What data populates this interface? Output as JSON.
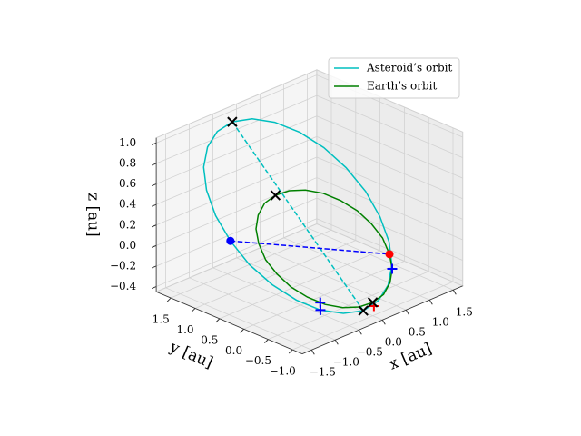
{
  "chart_data": {
    "type": "line3d",
    "xlabel": "x [au]",
    "ylabel": "y [au]",
    "zlabel": "z [au]",
    "xlim": [
      -1.7,
      1.7
    ],
    "ylim": [
      -1.2,
      1.8
    ],
    "zlim": [
      -0.45,
      1.05
    ],
    "xticks": [
      {
        "value": -1.5,
        "label": "−1.5"
      },
      {
        "value": -1.0,
        "label": "−1.0"
      },
      {
        "value": -0.5,
        "label": "−0.5"
      },
      {
        "value": 0,
        "label": "0.0"
      },
      {
        "value": 0.5,
        "label": "0.5"
      },
      {
        "value": 1.0,
        "label": "1.0"
      },
      {
        "value": 1.5,
        "label": "1.5"
      }
    ],
    "yticks": [
      {
        "value": -1.0,
        "label": "−1.0"
      },
      {
        "value": -0.5,
        "label": "−0.5"
      },
      {
        "value": 0,
        "label": "0.0"
      },
      {
        "value": 0.5,
        "label": "0.5"
      },
      {
        "value": 1.0,
        "label": "1.0"
      },
      {
        "value": 1.5,
        "label": "1.5"
      }
    ],
    "zticks": [
      {
        "value": -0.4,
        "label": "−0.4"
      },
      {
        "value": -0.2,
        "label": "−0.2"
      },
      {
        "value": 0,
        "label": "0.0"
      },
      {
        "value": 0.2,
        "label": "0.2"
      },
      {
        "value": 0.4,
        "label": "0.4"
      },
      {
        "value": 0.6,
        "label": "0.6"
      },
      {
        "value": 0.8,
        "label": "0.8"
      },
      {
        "value": 1.0,
        "label": "1.0"
      }
    ],
    "grid": true,
    "legend": "upper right",
    "series": [
      {
        "name": "Asteroid’s orbit",
        "color": "#00bfbf",
        "closed": true,
        "x": [
          -0.11,
          -0.46,
          -0.82,
          -1.16,
          -1.45,
          -1.68,
          -1.82,
          -1.88,
          -1.83,
          -1.7,
          -1.49,
          -1.2,
          -0.87,
          -0.51,
          -0.15,
          0.19,
          0.48,
          0.7,
          0.85,
          0.9,
          0.86,
          0.73,
          0.51,
          0.23
        ],
        "y": [
          1.78,
          1.75,
          1.6,
          1.35,
          1.01,
          0.6,
          0.16,
          -0.29,
          -0.71,
          -1.08,
          -1.37,
          -1.56,
          -1.65,
          -1.61,
          -1.46,
          -1.21,
          -0.87,
          -0.47,
          -0.03,
          0.42,
          0.84,
          1.21,
          1.51,
          1.7
        ],
        "z": [
          0.9,
          0.88,
          0.83,
          0.75,
          0.65,
          0.53,
          0.4,
          0.27,
          0.15,
          0.05,
          -0.03,
          -0.08,
          -0.1,
          -0.08,
          -0.03,
          0.05,
          0.15,
          0.27,
          0.4,
          0.53,
          0.65,
          0.75,
          0.83,
          0.88
        ]
      },
      {
        "name": "Earth’s orbit",
        "color": "#008000",
        "closed": true,
        "x": [
          1,
          0.97,
          0.87,
          0.71,
          0.5,
          0.26,
          0,
          -0.26,
          -0.5,
          -0.71,
          -0.87,
          -0.97,
          -1,
          -0.97,
          -0.87,
          -0.71,
          -0.5,
          -0.26,
          0,
          0.26,
          0.5,
          0.71,
          0.87,
          0.97
        ],
        "y": [
          0,
          0.26,
          0.5,
          0.71,
          0.87,
          0.97,
          1,
          0.97,
          0.87,
          0.71,
          0.5,
          0.26,
          0,
          -0.26,
          -0.5,
          -0.71,
          -0.87,
          -0.97,
          -1,
          -0.97,
          -0.87,
          -0.71,
          -0.5,
          -0.26
        ],
        "z": [
          0.05,
          0.13,
          0.2,
          0.26,
          0.3,
          0.32,
          0.32,
          0.3,
          0.25,
          0.19,
          0.12,
          0.03,
          -0.05,
          -0.13,
          -0.2,
          -0.26,
          -0.3,
          -0.32,
          -0.32,
          -0.3,
          -0.25,
          -0.19,
          -0.12,
          -0.03
        ]
      }
    ],
    "lines": [
      {
        "color": "#00bfbf",
        "style": "dashed",
        "x": [
          -0.11,
          -0.87
        ],
        "y": [
          1.78,
          -1.65
        ],
        "z": [
          0.9,
          -0.1
        ]
      },
      {
        "color": "#0000ff",
        "style": "dashed",
        "x": [
          -1.82,
          0.87
        ],
        "y": [
          0.16,
          -0.5
        ],
        "z": [
          0.4,
          -0.12
        ]
      }
    ],
    "markers": [
      {
        "marker": "o",
        "color": "#0000ff",
        "x": [
          -1.82
        ],
        "y": [
          0.16
        ],
        "z": [
          0.4
        ]
      },
      {
        "marker": "o",
        "color": "#ff0000",
        "x": [
          0.87
        ],
        "y": [
          -0.5
        ],
        "z": [
          -0.12
        ]
      },
      {
        "marker": "+",
        "color": "#0000ff",
        "x": [
          0.71,
          -1.38,
          -1.49
        ],
        "y": [
          -0.71,
          -1.26,
          -1.37
        ],
        "z": [
          -0.19,
          0,
          -0.03
        ]
      },
      {
        "marker": "+",
        "color": "#ff0000",
        "x": [
          -0.13
        ],
        "y": [
          -1.15
        ],
        "z": [
          -0.3
        ]
      },
      {
        "marker": "x",
        "color": "#000000",
        "x": [
          -0.11,
          -0.87,
          0,
          0
        ],
        "y": [
          1.78,
          -1.65,
          1,
          -1
        ],
        "z": [
          0.9,
          -0.1,
          0.32,
          -0.32
        ]
      }
    ]
  }
}
